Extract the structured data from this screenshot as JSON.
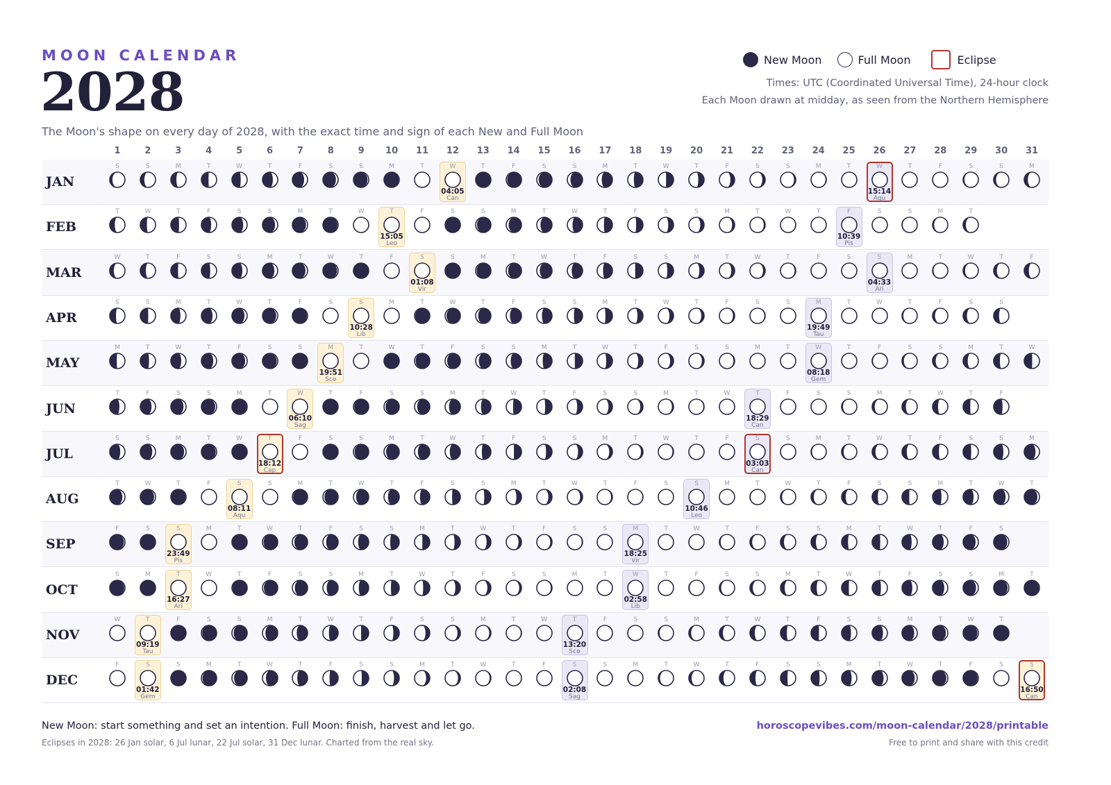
{
  "header": {
    "kicker": "MOON CALENDAR",
    "year": "2028",
    "subtitle": "The Moon's shape on every day of 2028, with the exact time and sign of each New and Full Moon"
  },
  "legend": {
    "new_moon": "New Moon",
    "full_moon": "Full Moon",
    "eclipse": "Eclipse"
  },
  "notes": {
    "times": "Times: UTC (Coordinated Universal Time), 24-hour clock",
    "drawn": "Each Moon drawn at midday, as seen from the Northern Hemisphere"
  },
  "months": [
    {
      "name": "JAN",
      "days": 31
    },
    {
      "name": "FEB",
      "days": 29
    },
    {
      "name": "MAR",
      "days": 31
    },
    {
      "name": "APR",
      "days": 30
    },
    {
      "name": "MAY",
      "days": 31
    },
    {
      "name": "JUN",
      "days": 30
    },
    {
      "name": "JUL",
      "days": 31
    },
    {
      "name": "AUG",
      "days": 31
    },
    {
      "name": "SEP",
      "days": 30
    },
    {
      "name": "OCT",
      "days": 31
    },
    {
      "name": "NOV",
      "days": 30
    },
    {
      "name": "DEC",
      "days": 31
    }
  ],
  "first_weekday_2028": 6,
  "weekday_letters": [
    "S",
    "M",
    "T",
    "W",
    "T",
    "F",
    "S"
  ],
  "events": [
    {
      "m": 0,
      "d": 12,
      "type": "full",
      "time": "04:05",
      "sign": "Can"
    },
    {
      "m": 0,
      "d": 26,
      "type": "new",
      "time": "15:14",
      "sign": "Aqu",
      "eclipse": true
    },
    {
      "m": 1,
      "d": 10,
      "type": "full",
      "time": "15:05",
      "sign": "Leo"
    },
    {
      "m": 1,
      "d": 25,
      "type": "new",
      "time": "10:39",
      "sign": "Pis"
    },
    {
      "m": 2,
      "d": 11,
      "type": "full",
      "time": "01:08",
      "sign": "Vir"
    },
    {
      "m": 2,
      "d": 26,
      "type": "new",
      "time": "04:33",
      "sign": "Ari"
    },
    {
      "m": 3,
      "d": 9,
      "type": "full",
      "time": "10:28",
      "sign": "Lib"
    },
    {
      "m": 3,
      "d": 24,
      "type": "new",
      "time": "19:49",
      "sign": "Tau"
    },
    {
      "m": 4,
      "d": 8,
      "type": "full",
      "time": "19:51",
      "sign": "Sco"
    },
    {
      "m": 4,
      "d": 24,
      "type": "new",
      "time": "08:18",
      "sign": "Gem"
    },
    {
      "m": 5,
      "d": 7,
      "type": "full",
      "time": "06:10",
      "sign": "Sag"
    },
    {
      "m": 5,
      "d": 22,
      "type": "new",
      "time": "18:29",
      "sign": "Can"
    },
    {
      "m": 6,
      "d": 6,
      "type": "full",
      "time": "18:12",
      "sign": "Cap",
      "eclipse": true
    },
    {
      "m": 6,
      "d": 22,
      "type": "new",
      "time": "03:03",
      "sign": "Can",
      "eclipse": true
    },
    {
      "m": 7,
      "d": 5,
      "type": "full",
      "time": "08:11",
      "sign": "Aqu"
    },
    {
      "m": 7,
      "d": 20,
      "type": "new",
      "time": "10:46",
      "sign": "Leo"
    },
    {
      "m": 8,
      "d": 3,
      "type": "full",
      "time": "23:49",
      "sign": "Pis"
    },
    {
      "m": 8,
      "d": 18,
      "type": "new",
      "time": "18:25",
      "sign": "Vir"
    },
    {
      "m": 9,
      "d": 3,
      "type": "full",
      "time": "16:27",
      "sign": "Ari"
    },
    {
      "m": 9,
      "d": 18,
      "type": "new",
      "time": "02:58",
      "sign": "Lib"
    },
    {
      "m": 10,
      "d": 2,
      "type": "full",
      "time": "09:19",
      "sign": "Tau"
    },
    {
      "m": 10,
      "d": 16,
      "type": "new",
      "time": "13:20",
      "sign": "Sco"
    },
    {
      "m": 11,
      "d": 2,
      "type": "full",
      "time": "01:42",
      "sign": "Gem"
    },
    {
      "m": 11,
      "d": 16,
      "type": "new",
      "time": "02:08",
      "sign": "Sag"
    },
    {
      "m": 11,
      "d": 31,
      "type": "full",
      "time": "16:50",
      "sign": "Can",
      "eclipse": true
    }
  ],
  "colors": {
    "moon_dark": "#2b2848",
    "accent": "#6a4fc0",
    "eclipse_border": "#b0362e",
    "full_box": "#fdf2d8",
    "new_box": "#ebe8f6"
  },
  "footer": {
    "line1": "New Moon: start something and set an intention. Full Moon: finish, harvest and let go.",
    "line2": "Eclipses in 2028: 26 Jan solar, 6 Jul lunar, 22 Jul solar, 31 Dec lunar. Charted from the real sky.",
    "url": "horoscopevibes.com/moon-calendar/2028/printable",
    "credit": "Free to print and share with this credit"
  }
}
